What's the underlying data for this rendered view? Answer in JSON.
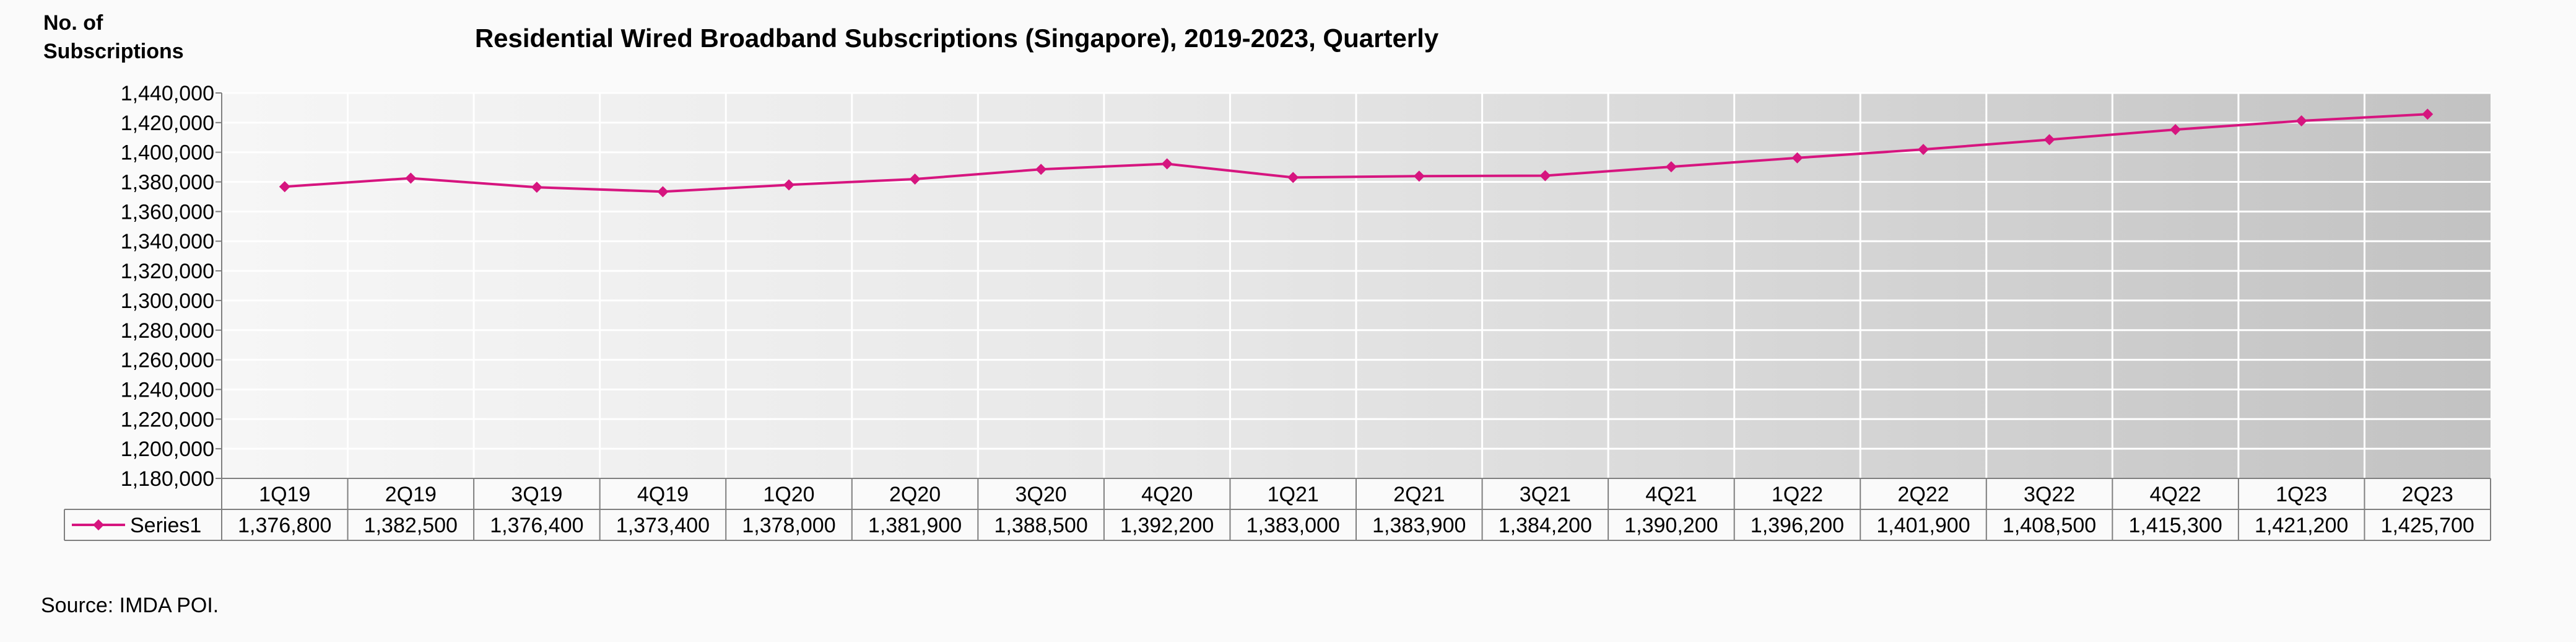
{
  "chart_data": {
    "type": "line",
    "title": "Residential Wired Broadband Subscriptions (Singapore), 2019-2023, Quarterly",
    "ylabel": "No. of Subscriptions",
    "ylabel_lines": [
      "No. of",
      "Subscriptions"
    ],
    "xlabel": "",
    "ylim": [
      1180000,
      1440000
    ],
    "ytick_step": 20000,
    "ytick_labels": [
      "1,180,000",
      "1,200,000",
      "1,220,000",
      "1,240,000",
      "1,260,000",
      "1,280,000",
      "1,300,000",
      "1,320,000",
      "1,340,000",
      "1,360,000",
      "1,380,000",
      "1,400,000",
      "1,420,000",
      "1,440,000"
    ],
    "categories": [
      "1Q19",
      "2Q19",
      "3Q19",
      "4Q19",
      "1Q20",
      "2Q20",
      "3Q20",
      "4Q20",
      "1Q21",
      "2Q21",
      "3Q21",
      "4Q21",
      "1Q22",
      "2Q22",
      "3Q22",
      "4Q22",
      "1Q23",
      "2Q23"
    ],
    "series": [
      {
        "name": "Series1",
        "values": [
          1376800,
          1382500,
          1376400,
          1373400,
          1378000,
          1381900,
          1388500,
          1392200,
          1383000,
          1383900,
          1384200,
          1390200,
          1396200,
          1401900,
          1408500,
          1415300,
          1421200,
          1425700
        ],
        "value_labels": [
          "1,376,800",
          "1,382,500",
          "1,376,400",
          "1,373,400",
          "1,378,000",
          "1,381,900",
          "1,388,500",
          "1,392,200",
          "1,383,000",
          "1,383,900",
          "1,384,200",
          "1,390,200",
          "1,396,200",
          "1,401,900",
          "1,408,500",
          "1,415,300",
          "1,421,200",
          "1,425,700"
        ],
        "color": "#d6157f"
      }
    ],
    "grid": true,
    "data_table": true,
    "source": "Source: IMDA POI."
  },
  "colors": {
    "series": "#d6157f",
    "grid": "#ffffff",
    "bg_light": "#f5f5f5",
    "bg_dark": "#c3c3c3",
    "border": "#7f7f7f"
  }
}
